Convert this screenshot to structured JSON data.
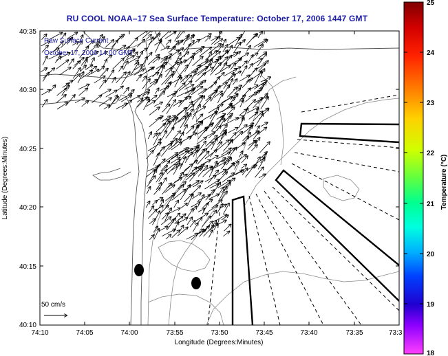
{
  "title": "RU COOL  NOAA–17  Sea Surface Temperature:  October 17, 2006 1447 GMT",
  "annotation": {
    "line1": "Raw Surface Current",
    "line2": "October 17, 2006 14:00 GMT"
  },
  "scale_label": "50 cm/s",
  "axes": {
    "xlabel": "Longitude (Degrees:Minutes)",
    "ylabel": "Latitude (Degrees:Minutes)",
    "x_ticks": [
      "74:10",
      "74:05",
      "74:00",
      "73:55",
      "73:50",
      "73:45",
      "73:40",
      "73:35",
      "73:3"
    ],
    "y_ticks": [
      "40:35",
      "40:30",
      "40:25",
      "40:20",
      "40:15",
      "40:10"
    ]
  },
  "colorbar": {
    "label": "Temperature (°C)",
    "ticks": [
      "25",
      "24",
      "23",
      "22",
      "21",
      "20",
      "19",
      "18"
    ],
    "min": 18,
    "max": 25
  }
}
